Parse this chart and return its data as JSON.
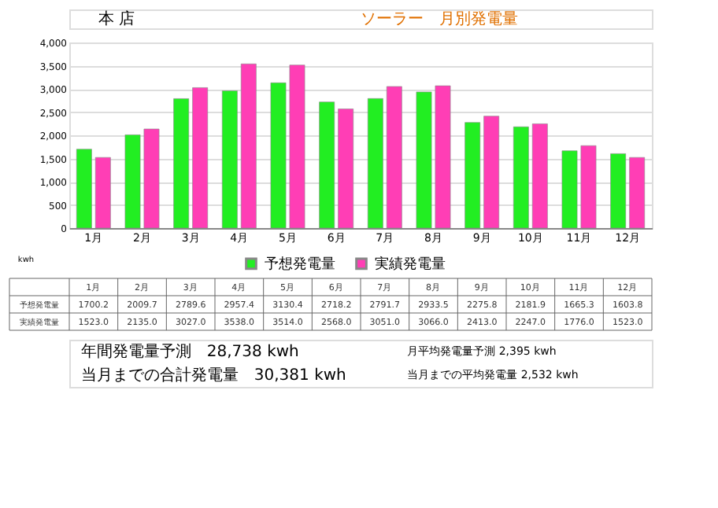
{
  "chart_data": {
    "type": "bar",
    "title": "ソーラー　月別発電量",
    "subtitle": "本 店",
    "ylabel": "kwh",
    "categories": [
      "1月",
      "2月",
      "3月",
      "4月",
      "5月",
      "6月",
      "7月",
      "8月",
      "9月",
      "10月",
      "11月",
      "12月"
    ],
    "series": [
      {
        "name": "予想発電量",
        "color": "#22ee22",
        "values": [
          1700.2,
          2009.7,
          2789.6,
          2957.4,
          3130.4,
          2718.2,
          2791.7,
          2933.5,
          2275.8,
          2181.9,
          1665.3,
          1603.8
        ],
        "value_labels": [
          "1700.2",
          "2009.7",
          "2789.6",
          "2957.4",
          "3130.4",
          "2718.2",
          "2791.7",
          "2933.5",
          "2275.8",
          "2181.9",
          "1665.3",
          "1603.8"
        ]
      },
      {
        "name": "実績発電量",
        "color": "#ff3eb5",
        "values": [
          1523.0,
          2135.0,
          3027.0,
          3538.0,
          3514.0,
          2568.0,
          3051.0,
          3066.0,
          2413.0,
          2247.0,
          1776.0,
          1523.0
        ],
        "value_labels": [
          "1523.0",
          "2135.0",
          "3027.0",
          "3538.0",
          "3514.0",
          "2568.0",
          "3051.0",
          "3066.0",
          "2413.0",
          "2247.0",
          "1776.0",
          "1523.0"
        ]
      }
    ],
    "ylim": [
      0,
      4000
    ],
    "yticks": [
      0,
      {
        "value": 500,
        "label": "500"
      },
      {
        "value": 1000,
        "label": "1,000"
      },
      {
        "value": 1500,
        "label": "1,500"
      },
      {
        "value": 2000,
        "label": "2,000"
      },
      {
        "value": 2500,
        "label": "2,500"
      },
      {
        "value": 3000,
        "label": "3,000"
      },
      {
        "value": 3500,
        "label": "3,500"
      },
      {
        "value": 4000,
        "label": "4,000"
      }
    ],
    "grid": "y",
    "legend": "bottom",
    "annotations": [
      "年間発電量予測　28,738 kwh",
      "月平均発電量予測 2,395 kwh",
      "当月までの合計発電量　30,381 kwh",
      "当月までの平均発電量 2,532 kwh"
    ]
  }
}
